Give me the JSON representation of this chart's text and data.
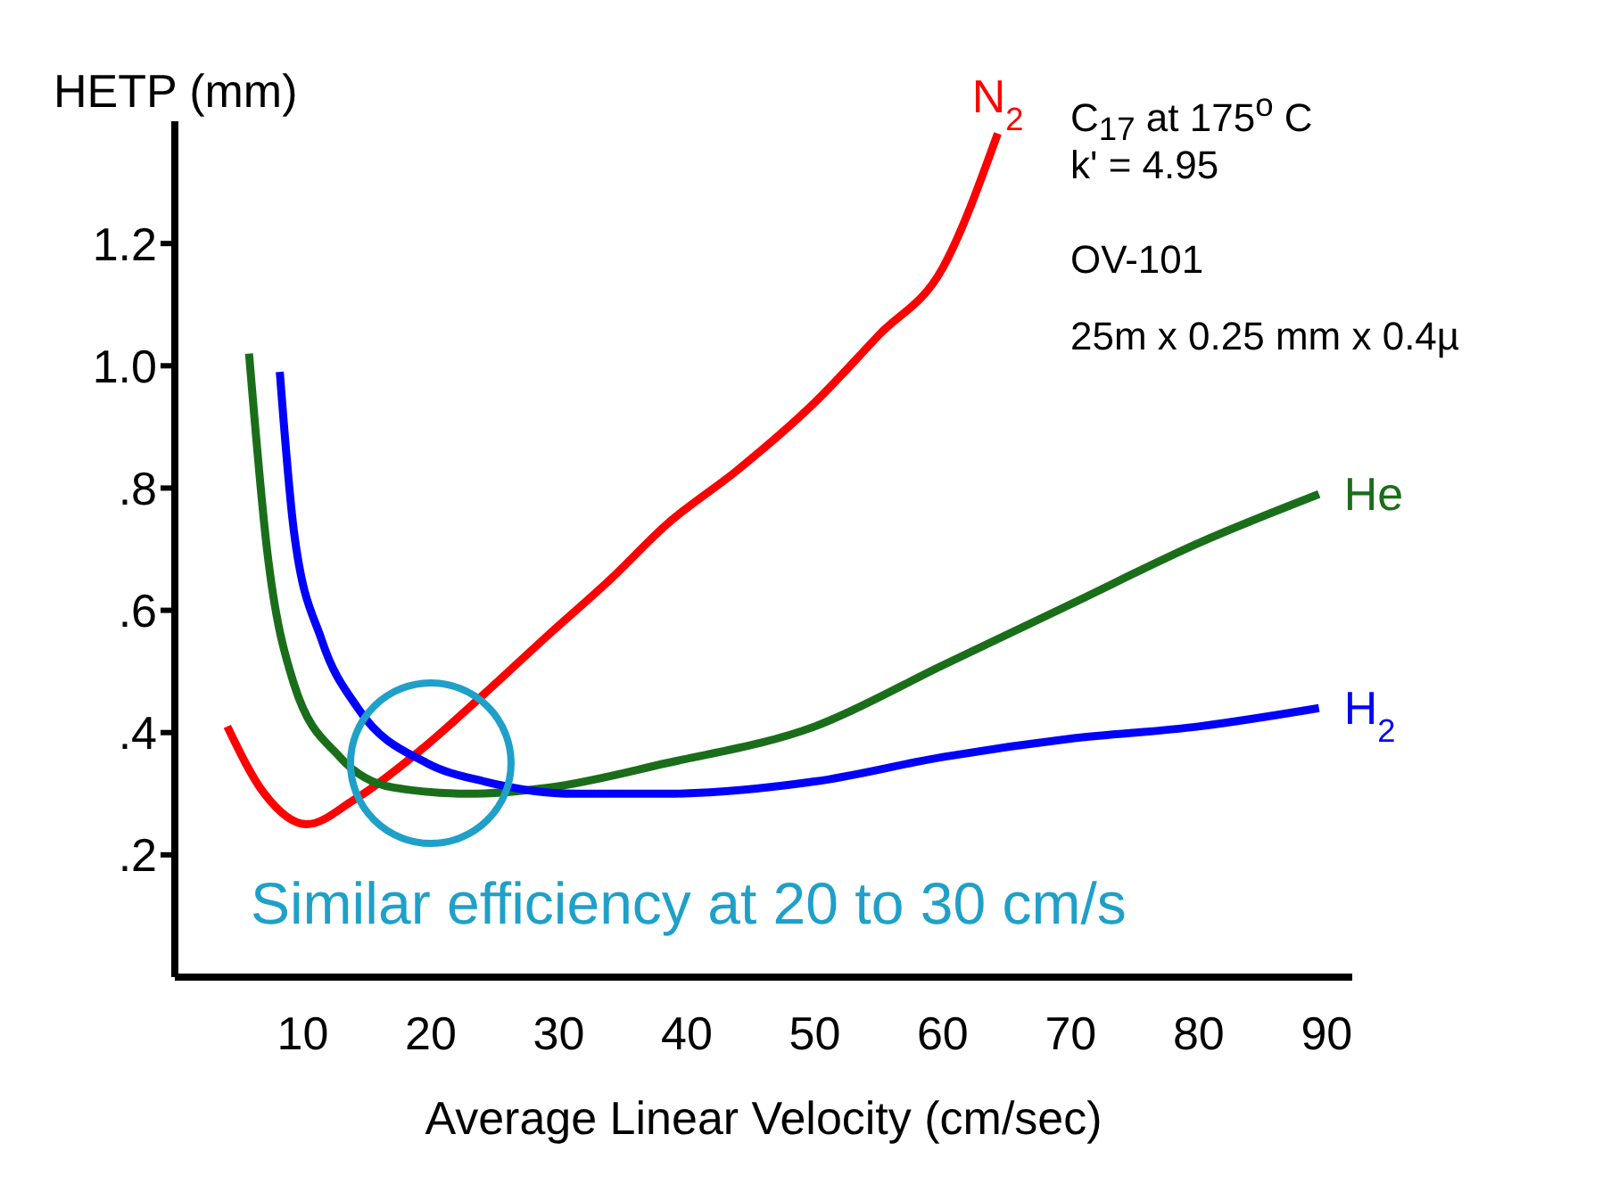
{
  "chart_data": {
    "type": "line",
    "xlabel": "Average Linear Velocity (cm/sec)",
    "ylabel": "HETP (mm)",
    "xlim": [
      0,
      92
    ],
    "ylim": [
      0,
      1.4
    ],
    "xticks": [
      10,
      20,
      30,
      40,
      50,
      60,
      70,
      80,
      90
    ],
    "yticks": [
      {
        "value": 0.2,
        "label": ".2"
      },
      {
        "value": 0.4,
        "label": ".4"
      },
      {
        "value": 0.6,
        "label": ".6"
      },
      {
        "value": 0.8,
        "label": ".8"
      },
      {
        "value": 1.0,
        "label": "1.0"
      },
      {
        "value": 1.2,
        "label": "1.2"
      }
    ],
    "grid": false,
    "series": [
      {
        "name": "N$_{2}$",
        "color": "#ff0000",
        "x": [
          4.1,
          7,
          10.3,
          14,
          19.7,
          24,
          29.2,
          34,
          38.4,
          44,
          50,
          55,
          60,
          64.3
        ],
        "values": [
          0.41,
          0.3,
          0.25,
          0.29,
          0.38,
          0.46,
          0.56,
          0.65,
          0.74,
          0.83,
          0.94,
          1.05,
          1.16,
          1.38
        ]
      },
      {
        "name": "He",
        "color": "#1a6e1a",
        "x": [
          5.8,
          7.2,
          9.3,
          12.9,
          17.1,
          22.8,
          29.2,
          38.4,
          50,
          60,
          70,
          80,
          89.4
        ],
        "values": [
          1.02,
          0.7,
          0.48,
          0.36,
          0.31,
          0.3,
          0.31,
          0.35,
          0.41,
          0.51,
          0.61,
          0.71,
          0.79
        ]
      },
      {
        "name": "H$_{2}$",
        "color": "#0000ff",
        "x": [
          8.2,
          9.3,
          11.5,
          14.3,
          19.7,
          24.2,
          31.3,
          38.4,
          50,
          60,
          70,
          80,
          89.4
        ],
        "values": [
          0.99,
          0.73,
          0.55,
          0.44,
          0.35,
          0.32,
          0.3,
          0.3,
          0.32,
          0.36,
          0.39,
          0.41,
          0.44
        ]
      }
    ],
    "annotations": [
      {
        "text": "Similar efficiency at 20 to 30 cm/s",
        "x": 20,
        "y": 0.35
      },
      "C$_{17}$ at 175$^{o}$ C",
      "k' = 4.95",
      "OV-101",
      "25m x 0.25 mm x 0.4µ"
    ]
  }
}
